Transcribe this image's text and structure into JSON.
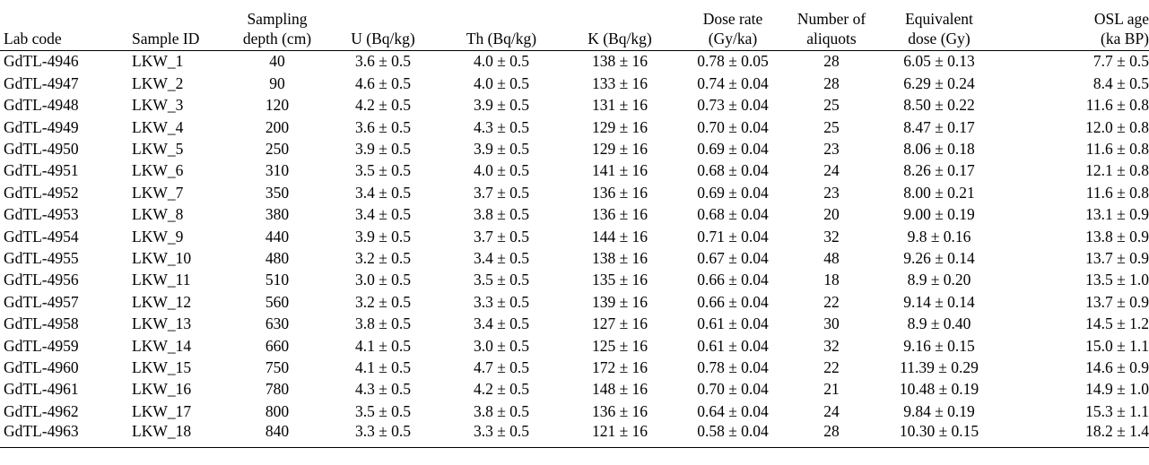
{
  "table": {
    "headers": [
      [
        "Lab code"
      ],
      [
        "Sample ID"
      ],
      [
        "Sampling",
        "depth (cm)"
      ],
      [
        "U (Bq/kg)"
      ],
      [
        "Th (Bq/kg)"
      ],
      [
        "K (Bq/kg)"
      ],
      [
        "Dose rate",
        "(Gy/ka)"
      ],
      [
        "Number of",
        "aliquots"
      ],
      [
        "Equivalent",
        "dose (Gy)"
      ],
      [
        "OSL age",
        "(ka BP)"
      ]
    ],
    "rows": [
      [
        "GdTL-4946",
        "LKW_1",
        "40",
        "3.6 ± 0.5",
        "4.0 ± 0.5",
        "138 ± 16",
        "0.78 ± 0.05",
        "28",
        "6.05 ± 0.13",
        "7.7 ± 0.5"
      ],
      [
        "GdTL-4947",
        "LKW_2",
        "90",
        "4.6 ± 0.5",
        "4.0 ± 0.5",
        "133 ± 16",
        "0.74 ± 0.04",
        "28",
        "6.29 ± 0.24",
        "8.4 ± 0.5"
      ],
      [
        "GdTL-4948",
        "LKW_3",
        "120",
        "4.2 ± 0.5",
        "3.9 ± 0.5",
        "131 ± 16",
        "0.73 ± 0.04",
        "25",
        "8.50 ± 0.22",
        "11.6 ± 0.8"
      ],
      [
        "GdTL-4949",
        "LKW_4",
        "200",
        "3.6 ± 0.5",
        "4.3 ± 0.5",
        "129 ± 16",
        "0.70 ± 0.04",
        "25",
        "8.47 ± 0.17",
        "12.0 ± 0.8"
      ],
      [
        "GdTL-4950",
        "LKW_5",
        "250",
        "3.9 ± 0.5",
        "3.9 ± 0.5",
        "129 ± 16",
        "0.69 ± 0.04",
        "23",
        "8.06 ± 0.18",
        "11.6 ± 0.8"
      ],
      [
        "GdTL-4951",
        "LKW_6",
        "310",
        "3.5 ± 0.5",
        "4.0 ± 0.5",
        "141 ± 16",
        "0.68 ± 0.04",
        "24",
        "8.26 ± 0.17",
        "12.1 ± 0.8"
      ],
      [
        "GdTL-4952",
        "LKW_7",
        "350",
        "3.4 ± 0.5",
        "3.7 ± 0.5",
        "136 ± 16",
        "0.69 ± 0.04",
        "23",
        "8.00 ± 0.21",
        "11.6 ± 0.8"
      ],
      [
        "GdTL-4953",
        "LKW_8",
        "380",
        "3.4 ± 0.5",
        "3.8 ± 0.5",
        "136 ± 16",
        "0.68 ± 0.04",
        "20",
        "9.00 ± 0.19",
        "13.1 ± 0.9"
      ],
      [
        "GdTL-4954",
        "LKW_9",
        "440",
        "3.9 ± 0.5",
        "3.7 ± 0.5",
        "144 ± 16",
        "0.71 ± 0.04",
        "32",
        "9.8 ± 0.16",
        "13.8 ± 0.9"
      ],
      [
        "GdTL-4955",
        "LKW_10",
        "480",
        "3.2 ± 0.5",
        "3.4 ± 0.5",
        "138 ± 16",
        "0.67 ± 0.04",
        "48",
        "9.26 ± 0.14",
        "13.7 ± 0.9"
      ],
      [
        "GdTL-4956",
        "LKW_11",
        "510",
        "3.0 ± 0.5",
        "3.5 ± 0.5",
        "135 ± 16",
        "0.66 ± 0.04",
        "18",
        "8.9 ± 0.20",
        "13.5 ± 1.0"
      ],
      [
        "GdTL-4957",
        "LKW_12",
        "560",
        "3.2 ± 0.5",
        "3.3 ± 0.5",
        "139 ± 16",
        "0.66 ± 0.04",
        "22",
        "9.14 ± 0.14",
        "13.7 ± 0.9"
      ],
      [
        "GdTL-4958",
        "LKW_13",
        "630",
        "3.8 ± 0.5",
        "3.4 ± 0.5",
        "127 ± 16",
        "0.61 ± 0.04",
        "30",
        "8.9 ± 0.40",
        "14.5 ± 1.2"
      ],
      [
        "GdTL-4959",
        "LKW_14",
        "660",
        "4.1 ± 0.5",
        "3.0 ± 0.5",
        "125 ± 16",
        "0.61 ± 0.04",
        "32",
        "9.16 ± 0.15",
        "15.0 ± 1.1"
      ],
      [
        "GdTL-4960",
        "LKW_15",
        "750",
        "4.1 ± 0.5",
        "4.7 ± 0.5",
        "172 ± 16",
        "0.78 ± 0.04",
        "22",
        "11.39 ± 0.29",
        "14.6 ± 0.9"
      ],
      [
        "GdTL-4961",
        "LKW_16",
        "780",
        "4.3 ± 0.5",
        "4.2 ± 0.5",
        "148 ± 16",
        "0.70 ± 0.04",
        "21",
        "10.48 ± 0.19",
        "14.9 ± 1.0"
      ],
      [
        "GdTL-4962",
        "LKW_17",
        "800",
        "3.5 ± 0.5",
        "3.8 ± 0.5",
        "136 ± 16",
        "0.64 ± 0.04",
        "24",
        "9.84 ± 0.19",
        "15.3 ± 1.1"
      ],
      [
        "GdTL-4963",
        "LKW_18",
        "840",
        "3.3 ± 0.5",
        "3.3 ± 0.5",
        "121 ± 16",
        "0.58 ± 0.04",
        "28",
        "10.30 ± 0.15",
        "18.2 ± 1.4"
      ]
    ]
  }
}
